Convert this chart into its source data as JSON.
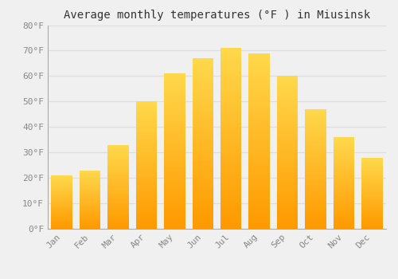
{
  "title": "Average monthly temperatures (°F ) in Miusinsk",
  "months": [
    "Jan",
    "Feb",
    "Mar",
    "Apr",
    "May",
    "Jun",
    "Jul",
    "Aug",
    "Sep",
    "Oct",
    "Nov",
    "Dec"
  ],
  "values": [
    21,
    23,
    33,
    50,
    61,
    67,
    71,
    69,
    60,
    47,
    36,
    28
  ],
  "bar_color_top": "#FFCC44",
  "bar_color_bottom": "#FFA500",
  "ylim": [
    0,
    80
  ],
  "yticks": [
    0,
    10,
    20,
    30,
    40,
    50,
    60,
    70,
    80
  ],
  "ytick_labels": [
    "0°F",
    "10°F",
    "20°F",
    "30°F",
    "40°F",
    "50°F",
    "60°F",
    "70°F",
    "80°F"
  ],
  "background_color": "#f0f0f0",
  "grid_color": "#dddddd",
  "title_fontsize": 10,
  "tick_fontsize": 8,
  "bar_edge_color": "none",
  "figsize": [
    5.0,
    3.5
  ],
  "dpi": 100
}
